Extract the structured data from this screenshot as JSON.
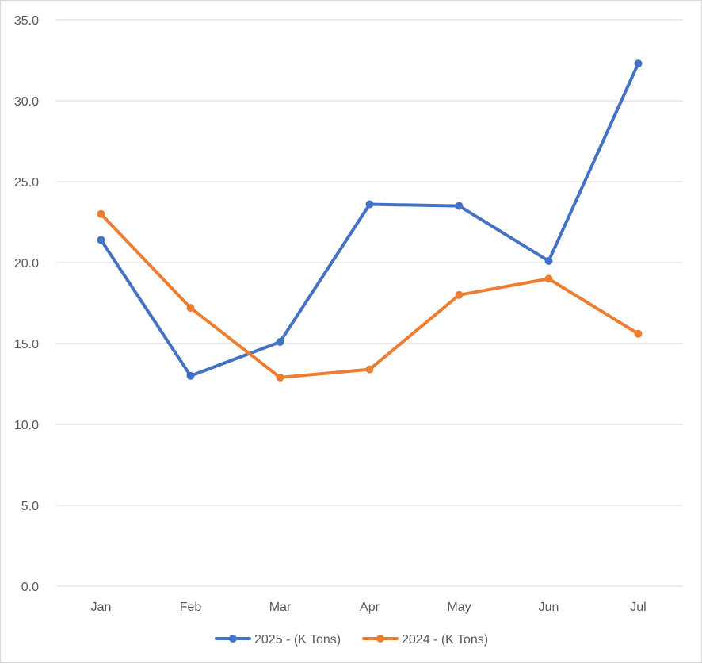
{
  "chart_data": {
    "type": "line",
    "title": "",
    "xlabel": "",
    "ylabel": "",
    "categories": [
      "Jan",
      "Feb",
      "Mar",
      "Apr",
      "May",
      "Jun",
      "Jul"
    ],
    "ylim": [
      0,
      35
    ],
    "yticks": [
      0,
      5,
      10,
      15,
      20,
      25,
      30,
      35
    ],
    "ytick_labels": [
      "0.0",
      "5.0",
      "10.0",
      "15.0",
      "20.0",
      "25.0",
      "30.0",
      "35.0"
    ],
    "grid": true,
    "legend_position": "bottom",
    "series": [
      {
        "name": "2025 - (K Tons)",
        "color": "#4472C4",
        "values": [
          21.4,
          13.0,
          15.1,
          23.6,
          23.5,
          20.1,
          32.3
        ]
      },
      {
        "name": "2024 - (K Tons)",
        "color": "#ED7D31",
        "values": [
          23.0,
          17.2,
          12.9,
          13.4,
          18.0,
          19.0,
          15.6
        ]
      }
    ]
  },
  "colors": {
    "gridline": "#d9d9d9",
    "text": "#595959",
    "border": "#d9d9d9"
  }
}
